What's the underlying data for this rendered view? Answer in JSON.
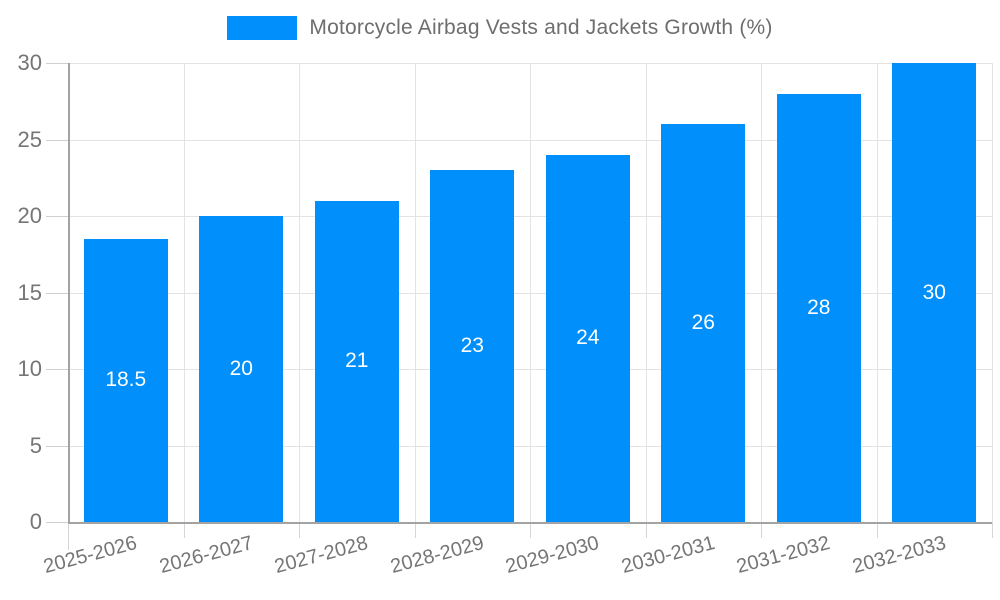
{
  "legend": {
    "label": "Motorcycle Airbag Vests and Jackets Growth (%)"
  },
  "chart_data": {
    "type": "bar",
    "title": "Motorcycle Airbag Vests and Jackets Growth (%)",
    "categories": [
      "2025-2026",
      "2026-2027",
      "2027-2028",
      "2028-2029",
      "2029-2030",
      "2030-2031",
      "2031-2032",
      "2032-2033"
    ],
    "values": [
      18.5,
      20,
      21,
      23,
      24,
      26,
      28,
      30
    ],
    "value_labels": [
      "18.5",
      "20",
      "21",
      "23",
      "24",
      "26",
      "28",
      "30"
    ],
    "xlabel": "",
    "ylabel": "",
    "ylim": [
      0,
      30
    ],
    "yticks": [
      0,
      5,
      10,
      15,
      20,
      25,
      30
    ],
    "grid": true,
    "legend_position": "top",
    "x_tick_rotation_deg": -15
  },
  "colors": {
    "bar": "#008FFB",
    "bar_value_text": "#ffffff",
    "grid": "#e3e3e3",
    "axis": "#a3a3a3",
    "tick_label": "#757575",
    "legend_text": "#6e6e6e",
    "background": "#ffffff"
  }
}
